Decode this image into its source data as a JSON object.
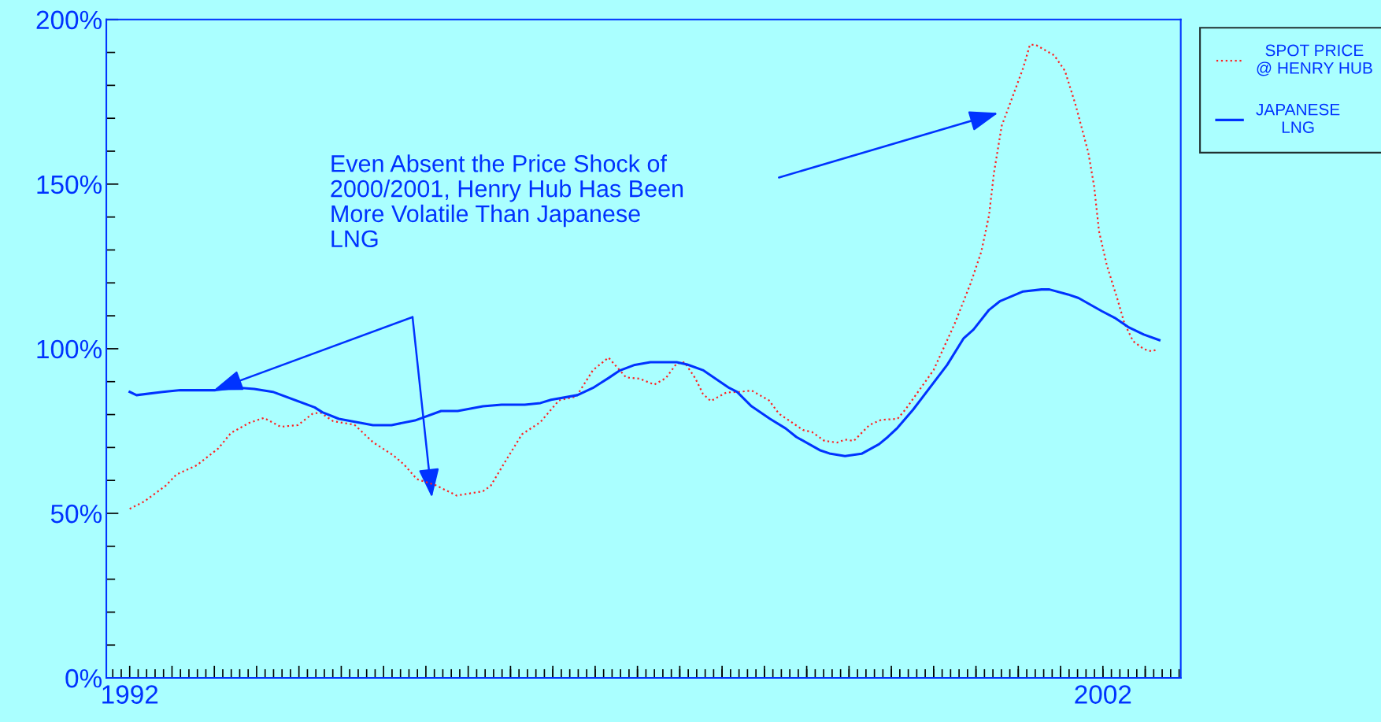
{
  "chart_data": {
    "type": "line",
    "xlim": [
      1991.76,
      2002.8
    ],
    "xticks": [
      {
        "value": 1992,
        "label": "1992"
      },
      {
        "value": 1992.4348,
        "label": null
      },
      {
        "value": 1992.8696,
        "label": null
      },
      {
        "value": 1993.3043,
        "label": null
      },
      {
        "value": 1993.7391,
        "label": null
      },
      {
        "value": 1994.1739,
        "label": null
      },
      {
        "value": 1994.6087,
        "label": null
      },
      {
        "value": 1995.0435,
        "label": null
      },
      {
        "value": 1995.4783,
        "label": null
      },
      {
        "value": 1995.913,
        "label": null
      },
      {
        "value": 1996.3478,
        "label": null
      },
      {
        "value": 1996.7826,
        "label": null
      },
      {
        "value": 1997.2174,
        "label": null
      },
      {
        "value": 1997.6522,
        "label": null
      },
      {
        "value": 1998.087,
        "label": null
      },
      {
        "value": 1998.5217,
        "label": null
      },
      {
        "value": 1998.9565,
        "label": null
      },
      {
        "value": 1999.3913,
        "label": null
      },
      {
        "value": 1999.8261,
        "label": null
      },
      {
        "value": 2000.2609,
        "label": null
      },
      {
        "value": 2000.6957,
        "label": null
      },
      {
        "value": 2001.1304,
        "label": null
      },
      {
        "value": 2001.5652,
        "label": null
      },
      {
        "value": 2002,
        "label": "2002"
      },
      {
        "value": 2002.4348,
        "label": null
      }
    ],
    "ylim": [
      0,
      200
    ],
    "yticks": [
      {
        "value": 0,
        "label": "0%"
      },
      {
        "value": 50,
        "label": "50%"
      },
      {
        "value": 100,
        "label": "100%"
      },
      {
        "value": 150,
        "label": "150%"
      },
      {
        "value": 200,
        "label": "200%"
      }
    ],
    "grid": false,
    "legend": "top right",
    "annotations": [
      "Even Absent the Price Shock of\n2000/2001, Henry Hub Has Been\nMore Volatile Than Japanese\nLNG"
    ],
    "series": [
      {
        "name": "SPOT PRICE @ HENRY HUB",
        "color": "#ff2020",
        "line_style": "dotted",
        "x": [
          1992.0,
          1992.15,
          1992.37,
          1992.48,
          1992.69,
          1992.91,
          1993.04,
          1993.23,
          1993.38,
          1993.55,
          1993.73,
          1993.88,
          1993.96,
          1994.09,
          1994.31,
          1994.5,
          1994.71,
          1994.82,
          1994.95,
          1995.14,
          1995.36,
          1995.63,
          1995.71,
          1995.84,
          1996.03,
          1996.22,
          1996.41,
          1996.59,
          1996.76,
          1996.92,
          1997.1,
          1997.24,
          1997.39,
          1997.51,
          1997.62,
          1997.7,
          1997.81,
          1997.89,
          1997.97,
          1998.13,
          1998.27,
          1998.39,
          1998.57,
          1998.67,
          1998.92,
          1999.01,
          1999.14,
          1999.27,
          1999.35,
          1999.44,
          1999.6,
          1999.72,
          1999.89,
          1999.97,
          2000.26,
          2000.48,
          2000.64,
          2000.75,
          2000.83,
          2000.88,
          2000.96,
          2001.07,
          2001.18,
          2001.25,
          2001.31,
          2001.5,
          2001.61,
          2001.72,
          2001.85,
          2001.91,
          2001.96,
          2002.04,
          2002.15,
          2002.22,
          2002.31,
          2002.42,
          2002.5,
          2002.55
        ],
        "values": [
          51.4,
          53.6,
          58.4,
          61.8,
          64.6,
          69.7,
          74.4,
          77.5,
          79.0,
          76.3,
          76.8,
          80.3,
          80.6,
          78.0,
          76.9,
          71.6,
          67.6,
          64.8,
          60.4,
          58.6,
          55.4,
          56.7,
          58.4,
          64.8,
          74.0,
          77.7,
          84.3,
          85.5,
          93.5,
          97.3,
          91.3,
          90.9,
          89.1,
          91.1,
          95.5,
          95.9,
          91.1,
          86.3,
          84.1,
          86.7,
          86.9,
          87.3,
          84.3,
          80.3,
          75.3,
          74.7,
          72.0,
          71.5,
          72.4,
          72.0,
          76.8,
          78.4,
          78.7,
          81.5,
          93.5,
          107.8,
          119.8,
          129.4,
          140.5,
          153.3,
          167.7,
          176.4,
          185.2,
          192.3,
          192.3,
          189.1,
          184.4,
          174.0,
          159.6,
          149.3,
          135.7,
          125.4,
          115.0,
          107.8,
          102.3,
          99.9,
          99.2,
          99.7
        ]
      },
      {
        "name": "JAPANESE LNG",
        "color": "#0033ff",
        "line_style": "solid",
        "x": [
          1992.0,
          1992.07,
          1992.34,
          1992.52,
          1992.88,
          1993.1,
          1993.28,
          1993.47,
          1993.9,
          1993.98,
          1994.15,
          1994.5,
          1994.69,
          1994.93,
          1995.2,
          1995.37,
          1995.63,
          1995.82,
          1996.06,
          1996.22,
          1996.33,
          1996.6,
          1996.76,
          1996.92,
          1997.03,
          1997.19,
          1997.35,
          1997.62,
          1997.73,
          1997.89,
          1998.05,
          1998.16,
          1998.24,
          1998.39,
          1998.58,
          1998.74,
          1998.85,
          1999.09,
          1999.19,
          1999.35,
          1999.52,
          1999.7,
          1999.79,
          1999.89,
          2000.05,
          2000.4,
          2000.57,
          2000.67,
          2000.83,
          2000.94,
          2001.18,
          2001.37,
          2001.45,
          2001.64,
          2001.75,
          2001.99,
          2002.12,
          2002.26,
          2002.42,
          2002.58
        ],
        "values": [
          86.9,
          85.9,
          86.9,
          87.4,
          87.4,
          88.2,
          87.8,
          86.9,
          82.2,
          80.7,
          78.7,
          76.8,
          76.8,
          78.2,
          81.1,
          81.1,
          82.5,
          83.0,
          83.0,
          83.5,
          84.5,
          85.9,
          88.1,
          91.1,
          93.3,
          95.1,
          95.9,
          95.9,
          95.2,
          93.5,
          90.3,
          88.1,
          86.9,
          82.5,
          78.7,
          75.8,
          73.2,
          69.2,
          68.2,
          67.4,
          68.1,
          71.0,
          73.2,
          76.0,
          81.5,
          95.1,
          103.2,
          105.8,
          111.8,
          114.4,
          117.4,
          118.0,
          118.0,
          116.5,
          115.4,
          111.4,
          109.4,
          106.6,
          104.3,
          102.6
        ]
      }
    ]
  }
}
